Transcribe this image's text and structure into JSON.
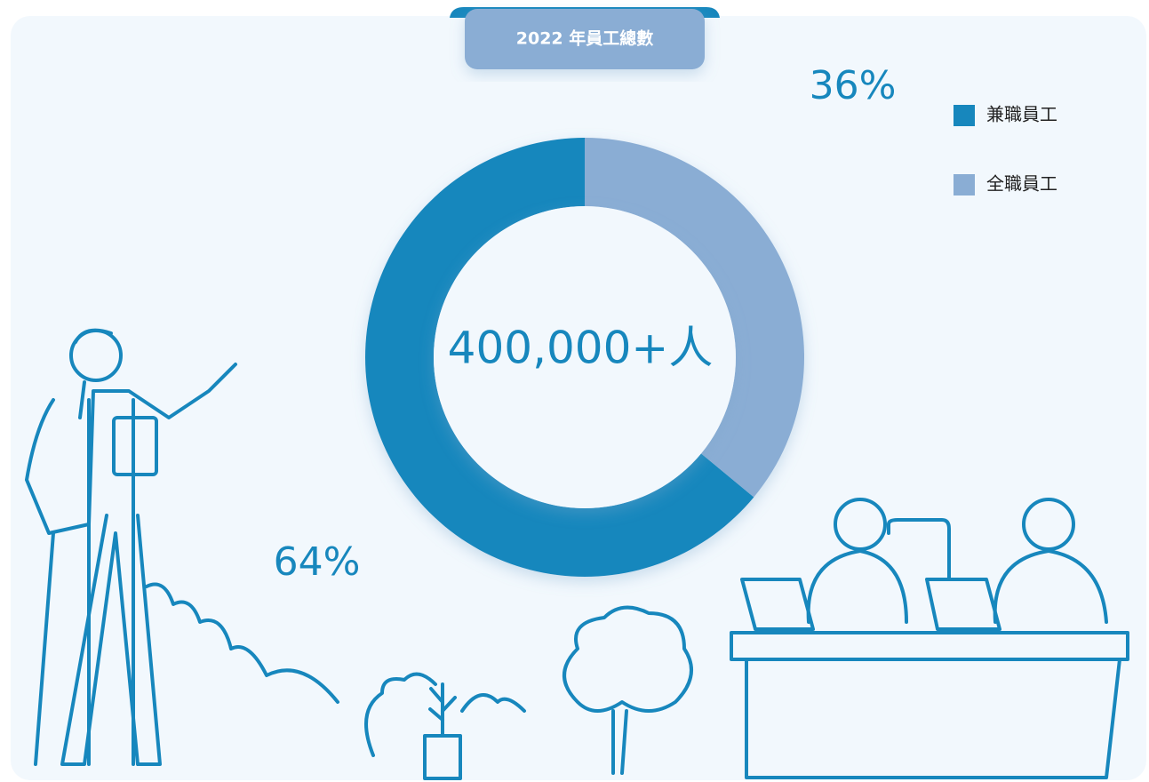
{
  "chart_data": {
    "type": "donut",
    "title": "2022 年員工總數",
    "center_label": "400,000+人",
    "categories": [
      "兼職員工",
      "全職員工"
    ],
    "values": [
      64,
      36
    ],
    "value_labels": [
      "64%",
      "36%"
    ],
    "colors": [
      "#1787bd",
      "#8aadd4"
    ],
    "legend": "top-right"
  }
}
